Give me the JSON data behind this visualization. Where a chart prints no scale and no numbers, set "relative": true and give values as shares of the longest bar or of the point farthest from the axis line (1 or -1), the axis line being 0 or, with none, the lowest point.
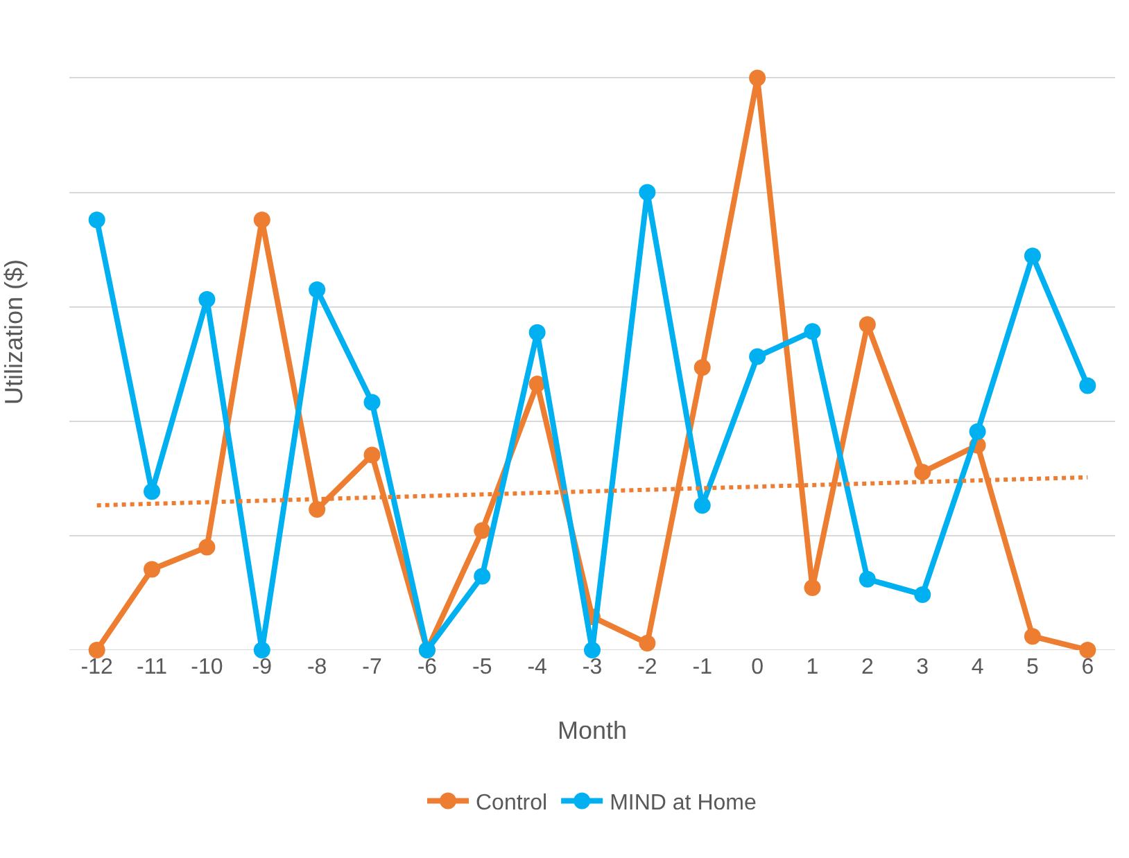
{
  "chart_data": {
    "type": "line",
    "relative": true,
    "xlabel": "Month",
    "ylabel": "Utilization ($)",
    "x": [
      -12,
      -11,
      -10,
      -9,
      -8,
      -7,
      -6,
      -5,
      -4,
      -3,
      -2,
      -1,
      0,
      1,
      2,
      3,
      4,
      5,
      6
    ],
    "xlim": [
      -12.5,
      6.5
    ],
    "xticks": [
      -12,
      -11,
      -10,
      -9,
      -8,
      -7,
      -6,
      -5,
      -4,
      -3,
      -2,
      -1,
      0,
      1,
      2,
      3,
      4,
      5,
      6
    ],
    "series": [
      {
        "name": "Control",
        "color": "#ed7d31",
        "values": [
          0,
          0.141,
          0.18,
          0.752,
          0.246,
          0.341,
          0,
          0.209,
          0.465,
          0.058,
          0.012,
          0.494,
          1,
          0.109,
          0.569,
          0.311,
          0.358,
          0.024,
          0
        ]
      },
      {
        "name": "MIND at Home",
        "color": "#00b0f0",
        "values": [
          0.752,
          0.277,
          0.613,
          0,
          0.63,
          0.433,
          0,
          0.129,
          0.555,
          0,
          0.8,
          0.253,
          0.513,
          0.557,
          0.124,
          0.097,
          0.382,
          0.689,
          0.462
        ]
      },
      {
        "type": "line",
        "color": "#ed7d31",
        "x": [
          -12,
          6
        ],
        "values": [
          0.253,
          0.302
        ],
        "line_style": "dotted",
        "marker": "none"
      }
    ],
    "marker": "circle",
    "line_style": "solid",
    "grid": "y",
    "legend": "bottom"
  }
}
